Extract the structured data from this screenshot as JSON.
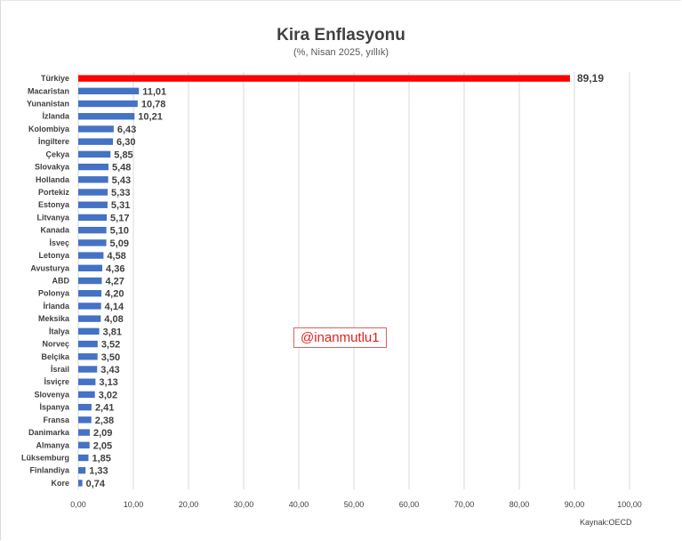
{
  "chart_data": {
    "type": "bar",
    "orientation": "horizontal",
    "title": "Kira Enflasyonu",
    "subtitle": "(%, Nisan 2025, yıllık)",
    "source": "Kaynak:OECD",
    "watermark": "@inanmutlu1",
    "xlim": [
      0,
      100
    ],
    "x_ticks": [
      "0,00",
      "10,00",
      "20,00",
      "30,00",
      "40,00",
      "50,00",
      "60,00",
      "70,00",
      "80,00",
      "90,00",
      "100,00"
    ],
    "grid": true,
    "categories": [
      "Türkiye",
      "Macaristan",
      "Yunanistan",
      "İzlanda",
      "Kolombiya",
      "İngiltere",
      "Çekya",
      "Slovakya",
      "Hollanda",
      "Portekiz",
      "Estonya",
      "Litvanya",
      "Kanada",
      "İsveç",
      "Letonya",
      "Avusturya",
      "ABD",
      "Polonya",
      "İrlanda",
      "Meksika",
      "İtalya",
      "Norveç",
      "Belçika",
      "İsrail",
      "İsviçre",
      "Slovenya",
      "İspanya",
      "Fransa",
      "Danimarka",
      "Almanya",
      "Lüksemburg",
      "Finlandiya",
      "Kore"
    ],
    "values": [
      89.19,
      11.01,
      10.78,
      10.21,
      6.43,
      6.3,
      5.85,
      5.48,
      5.43,
      5.33,
      5.31,
      5.17,
      5.1,
      5.09,
      4.58,
      4.36,
      4.27,
      4.2,
      4.14,
      4.08,
      3.81,
      3.52,
      3.5,
      3.43,
      3.13,
      3.02,
      2.41,
      2.38,
      2.09,
      2.05,
      1.85,
      1.33,
      0.74
    ],
    "value_labels": [
      "89,19",
      "11,01",
      "10,78",
      "10,21",
      "6,43",
      "6,30",
      "5,85",
      "5,48",
      "5,43",
      "5,33",
      "5,31",
      "5,17",
      "5,10",
      "5,09",
      "4,58",
      "4,36",
      "4,27",
      "4,20",
      "4,14",
      "4,08",
      "3,81",
      "3,52",
      "3,50",
      "3,43",
      "3,13",
      "3,02",
      "2,41",
      "2,38",
      "2,09",
      "2,05",
      "1,85",
      "1,33",
      "0,74"
    ],
    "colors": {
      "bar": "#4472c4",
      "highlight_bar": "#ff0000",
      "highlight_label": "#e00000",
      "grid": "#d9d9d9"
    },
    "highlight_category": "Türkiye"
  }
}
